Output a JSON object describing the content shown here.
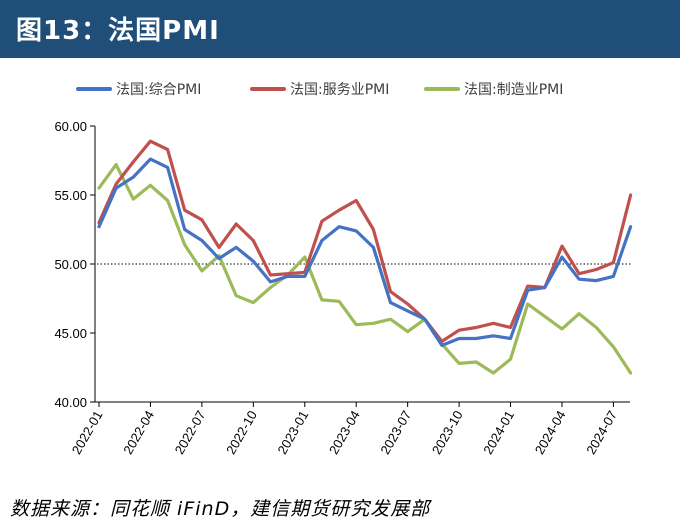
{
  "header": {
    "title": "图13：法国PMI"
  },
  "source": "数据来源：同花顺 iFinD，建信期货研究发展部",
  "chart_data": {
    "type": "line",
    "title": "",
    "xlabel": "",
    "ylabel": "",
    "ylim": [
      40,
      60
    ],
    "yticks": [
      "40.00",
      "45.00",
      "50.00",
      "55.00",
      "60.00"
    ],
    "reference_line": 50,
    "x": [
      "2022-01",
      "2022-02",
      "2022-03",
      "2022-04",
      "2022-05",
      "2022-06",
      "2022-07",
      "2022-08",
      "2022-09",
      "2022-10",
      "2022-11",
      "2022-12",
      "2023-01",
      "2023-02",
      "2023-03",
      "2023-04",
      "2023-05",
      "2023-06",
      "2023-07",
      "2023-08",
      "2023-09",
      "2023-10",
      "2023-11",
      "2023-12",
      "2024-01",
      "2024-02",
      "2024-03",
      "2024-04",
      "2024-05",
      "2024-06",
      "2024-07",
      "2024-08"
    ],
    "x_tick_labels": [
      "2022-01",
      "2022-04",
      "2022-07",
      "2022-10",
      "2023-01",
      "2023-04",
      "2023-07",
      "2023-10",
      "2024-01",
      "2024-04",
      "2024-07"
    ],
    "legend_position": "top",
    "series": [
      {
        "name": "法国:综合PMI",
        "color": "#4472c4",
        "values": [
          52.7,
          55.5,
          56.3,
          57.6,
          57.0,
          52.5,
          51.7,
          50.4,
          51.2,
          50.2,
          48.7,
          49.1,
          49.1,
          51.7,
          52.7,
          52.4,
          51.2,
          47.2,
          46.6,
          46.0,
          44.1,
          44.6,
          44.6,
          44.8,
          44.6,
          48.1,
          48.3,
          50.5,
          48.9,
          48.8,
          49.1,
          52.7
        ]
      },
      {
        "name": "法国:服务业PMI",
        "color": "#c0504d",
        "values": [
          53.0,
          55.8,
          57.4,
          58.9,
          58.3,
          53.9,
          53.2,
          51.2,
          52.9,
          51.7,
          49.2,
          49.3,
          49.4,
          53.1,
          53.9,
          54.6,
          52.5,
          48.0,
          47.1,
          46.0,
          44.4,
          45.2,
          45.4,
          45.7,
          45.4,
          48.4,
          48.3,
          51.3,
          49.3,
          49.6,
          50.1,
          55.0
        ]
      },
      {
        "name": "法国:制造业PMI",
        "color": "#9bbb59",
        "values": [
          55.5,
          57.2,
          54.7,
          55.7,
          54.6,
          51.4,
          49.5,
          50.6,
          47.7,
          47.2,
          48.3,
          49.2,
          50.5,
          47.4,
          47.3,
          45.6,
          45.7,
          46.0,
          45.1,
          46.0,
          44.2,
          42.8,
          42.9,
          42.1,
          43.1,
          47.1,
          46.2,
          45.3,
          46.4,
          45.4,
          44.0,
          42.1
        ]
      }
    ]
  }
}
